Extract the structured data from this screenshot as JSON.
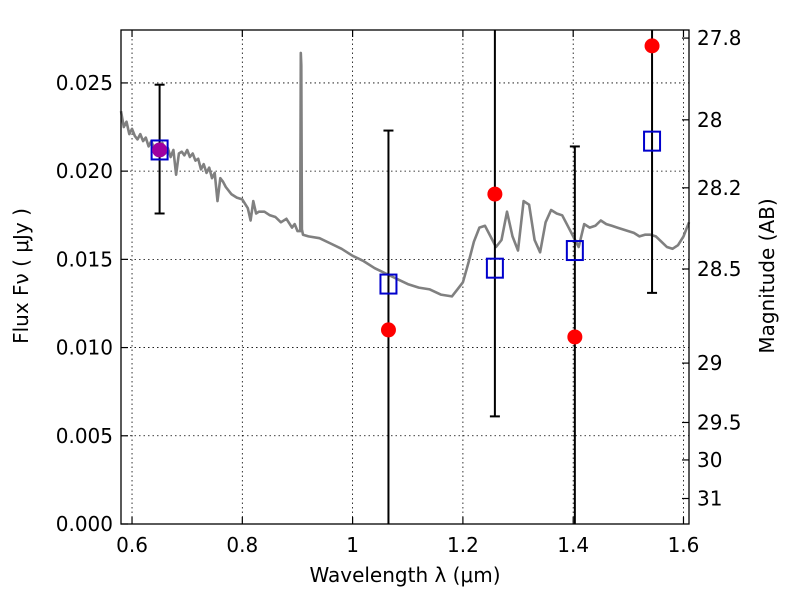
{
  "chart_data": {
    "type": "scatter",
    "xlabel": "Wavelength  λ (μm)",
    "ylabel": "Flux  Fν  ( μJy )",
    "ylabel_right": "Magnitude (AB)",
    "xlim": [
      0.58,
      1.61
    ],
    "ylim": [
      0.0,
      0.028
    ],
    "grid": true,
    "x_ticks": [
      0.6,
      0.8,
      1.0,
      1.2,
      1.4,
      1.6
    ],
    "x_tick_labels": [
      "0.6",
      "0.8",
      "1",
      "1.2",
      "1.4",
      "1.6"
    ],
    "y_ticks": [
      0.0,
      0.005,
      0.01,
      0.015,
      0.02,
      0.025
    ],
    "y_tick_labels": [
      "0.000",
      "0.005",
      "0.010",
      "0.015",
      "0.020",
      "0.025"
    ],
    "mag_ticks": [
      27.8,
      28,
      28.2,
      28.5,
      29,
      29.5,
      30,
      31
    ],
    "mag_tick_labels": [
      "27.8",
      "28",
      "28.2",
      "28.5",
      "29",
      "29.5",
      "30",
      "31"
    ],
    "series": [
      {
        "kind": "line",
        "color": "#808080",
        "x": [
          0.58,
          0.585,
          0.59,
          0.595,
          0.6,
          0.605,
          0.61,
          0.615,
          0.62,
          0.625,
          0.63,
          0.635,
          0.64,
          0.645,
          0.65,
          0.655,
          0.66,
          0.665,
          0.67,
          0.675,
          0.68,
          0.685,
          0.69,
          0.695,
          0.7,
          0.705,
          0.71,
          0.715,
          0.72,
          0.725,
          0.73,
          0.735,
          0.74,
          0.745,
          0.75,
          0.755,
          0.76,
          0.765,
          0.77,
          0.78,
          0.79,
          0.8,
          0.81,
          0.815,
          0.82,
          0.825,
          0.83,
          0.84,
          0.85,
          0.86,
          0.87,
          0.88,
          0.89,
          0.895,
          0.9,
          0.905,
          0.906,
          0.907,
          0.908,
          0.91,
          0.92,
          0.94,
          0.96,
          0.98,
          1.0,
          1.02,
          1.04,
          1.06,
          1.08,
          1.1,
          1.12,
          1.14,
          1.16,
          1.18,
          1.19,
          1.2,
          1.21,
          1.22,
          1.23,
          1.24,
          1.25,
          1.26,
          1.27,
          1.28,
          1.29,
          1.3,
          1.31,
          1.32,
          1.33,
          1.34,
          1.35,
          1.36,
          1.37,
          1.38,
          1.39,
          1.4,
          1.41,
          1.42,
          1.43,
          1.44,
          1.45,
          1.46,
          1.47,
          1.48,
          1.49,
          1.5,
          1.51,
          1.52,
          1.53,
          1.54,
          1.55,
          1.56,
          1.57,
          1.58,
          1.59,
          1.6,
          1.61
        ],
        "y": [
          0.0234,
          0.0225,
          0.0228,
          0.0221,
          0.0224,
          0.022,
          0.0218,
          0.0221,
          0.0217,
          0.0219,
          0.0214,
          0.0217,
          0.0213,
          0.0215,
          0.0212,
          0.0216,
          0.021,
          0.0213,
          0.0208,
          0.0212,
          0.0198,
          0.021,
          0.0211,
          0.0209,
          0.0212,
          0.0208,
          0.021,
          0.0206,
          0.0207,
          0.0201,
          0.0204,
          0.0199,
          0.0202,
          0.0196,
          0.0199,
          0.0183,
          0.0196,
          0.0194,
          0.0191,
          0.0187,
          0.0185,
          0.0184,
          0.0179,
          0.0172,
          0.0183,
          0.0176,
          0.0177,
          0.0177,
          0.0175,
          0.0174,
          0.0171,
          0.0173,
          0.0168,
          0.017,
          0.0166,
          0.0166,
          0.0267,
          0.026,
          0.0167,
          0.0164,
          0.0163,
          0.0162,
          0.0159,
          0.0156,
          0.0152,
          0.0149,
          0.0145,
          0.0142,
          0.0139,
          0.0136,
          0.0134,
          0.0133,
          0.013,
          0.0129,
          0.0133,
          0.0137,
          0.0148,
          0.016,
          0.0168,
          0.0169,
          0.0163,
          0.0157,
          0.0161,
          0.0177,
          0.0163,
          0.0155,
          0.0183,
          0.0181,
          0.0161,
          0.0154,
          0.0171,
          0.0178,
          0.0176,
          0.0175,
          0.0169,
          0.0163,
          0.0157,
          0.017,
          0.0168,
          0.0169,
          0.0172,
          0.017,
          0.0169,
          0.0168,
          0.0167,
          0.0166,
          0.0165,
          0.0163,
          0.0164,
          0.0164,
          0.0163,
          0.016,
          0.0157,
          0.0156,
          0.0158,
          0.0163,
          0.0171
        ]
      },
      {
        "kind": "squares",
        "color": "#0000cc",
        "x": [
          0.65,
          1.065,
          1.258,
          1.403,
          1.543
        ],
        "y": [
          0.0212,
          0.0136,
          0.0145,
          0.0155,
          0.0217
        ]
      },
      {
        "kind": "points",
        "color": "#ff0000",
        "x": [
          0.65,
          1.065,
          1.258,
          1.403,
          1.543
        ],
        "y": [
          0.0212,
          0.011,
          0.0187,
          0.0106,
          0.0271
        ],
        "yerr_low": [
          0.0176,
          0.0,
          0.0061,
          0.0,
          0.0131
        ],
        "yerr_high": [
          0.0249,
          0.0223,
          0.0285,
          0.0214,
          0.0285
        ]
      }
    ]
  }
}
